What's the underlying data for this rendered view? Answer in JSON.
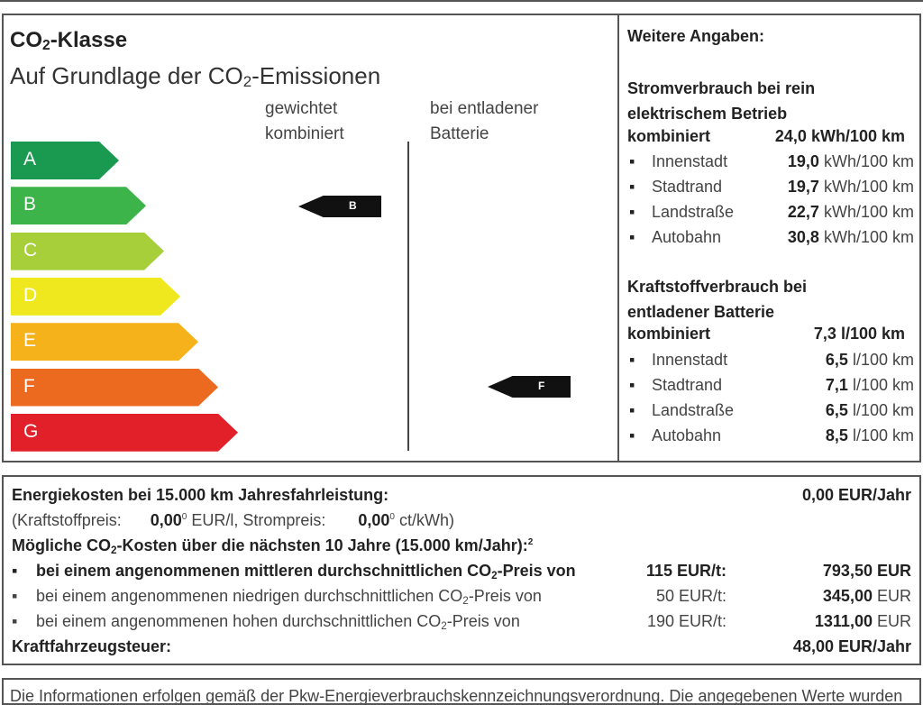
{
  "co2": {
    "title_pre": "CO",
    "title_sub": "2",
    "title_post": "-Klasse",
    "subtitle_pre": "Auf Grundlage der CO",
    "subtitle_sub": "2",
    "subtitle_post": "-Emissionen",
    "col1": [
      "gewichtet",
      "kombiniert"
    ],
    "col2": [
      "bei entladener",
      "Batterie"
    ],
    "classes": [
      {
        "label": "A",
        "color": "#1a9a50"
      },
      {
        "label": "B",
        "color": "#3cb44a"
      },
      {
        "label": "C",
        "color": "#a6cf3a"
      },
      {
        "label": "D",
        "color": "#f0e81e"
      },
      {
        "label": "E",
        "color": "#f6b21b"
      },
      {
        "label": "F",
        "color": "#ec6a1f"
      },
      {
        "label": "G",
        "color": "#e1202a"
      }
    ],
    "weighted_class": "B",
    "discharged_class": "F"
  },
  "details": {
    "title": "Weitere Angaben:",
    "electric": {
      "heading": [
        "Stromverbrauch bei rein",
        "elektrischem Betrieb"
      ],
      "combined_label": "kombiniert",
      "combined_value": "24,0 kWh/100 km",
      "items": [
        {
          "label": "Innenstadt",
          "value": "19,0",
          "unit": "kWh/100 km"
        },
        {
          "label": "Stadtrand",
          "value": "19,7",
          "unit": "kWh/100 km"
        },
        {
          "label": "Landstraße",
          "value": "22,7",
          "unit": "kWh/100 km"
        },
        {
          "label": "Autobahn",
          "value": "30,8",
          "unit": "kWh/100 km"
        }
      ]
    },
    "fuel": {
      "heading": [
        "Kraftstoffverbrauch bei",
        "entladener Batterie"
      ],
      "combined_label": "kombiniert",
      "combined_value": "7,3 l/100 km",
      "items": [
        {
          "label": "Innenstadt",
          "value": "6,5",
          "unit": "l/100 km"
        },
        {
          "label": "Stadtrand",
          "value": "7,1",
          "unit": "l/100 km"
        },
        {
          "label": "Landstraße",
          "value": "6,5",
          "unit": "l/100 km"
        },
        {
          "label": "Autobahn",
          "value": "8,5",
          "unit": "l/100 km"
        }
      ]
    }
  },
  "costs": {
    "energy_label": "Energiekosten bei 15.000 km Jahresfahrleistung:",
    "energy_value": "0,00 EUR/Jahr",
    "fuel_price_label": "(Kraftstoffpreis:",
    "fuel_price": "0,00",
    "fuel_price_unit": " EUR/l, Strompreis:",
    "power_price": "0,00",
    "power_price_unit": " ct/kWh)",
    "footnote": "0",
    "co2_heading_pre": "Mögliche CO",
    "co2_heading_post": "-Kosten über die nächsten 10 Jahre (15.000 km/Jahr):",
    "co2_heading_note": "2",
    "scenarios": [
      {
        "text_pre": "bei einem angenommenen mittleren durchschnittlichen CO",
        "text_post": "-Preis von",
        "price": "115 EUR/t:",
        "value": "793,50",
        "unit": "EUR"
      },
      {
        "text_pre": "bei einem angenommenen niedrigen durchschnittlichen CO",
        "text_post": "-Preis von",
        "price": "50 EUR/t:",
        "value": "345,00",
        "unit": "EUR"
      },
      {
        "text_pre": "bei einem angenommenen hohen durchschnittlichen CO",
        "text_post": "-Preis von",
        "price": "190 EUR/t:",
        "value": "1311,00",
        "unit": "EUR"
      }
    ],
    "tax_label": "Kraftfahrzeugsteuer:",
    "tax_value": "48,00 EUR/Jahr"
  },
  "footer": {
    "text": "Die Informationen erfolgen gemäß der Pkw-Energieverbrauchskennzeichnungsverordnung. Die angegebenen Werte wurden"
  }
}
